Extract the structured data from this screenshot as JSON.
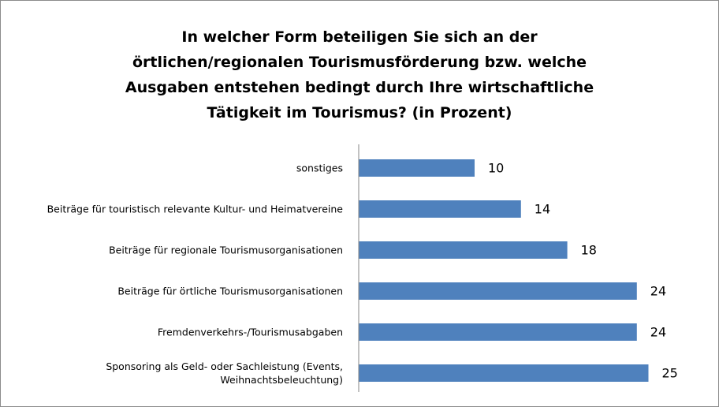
{
  "chart_data": {
    "type": "bar",
    "orientation": "horizontal",
    "title": "In welcher Form beteiligen Sie sich an der örtlichen/regionalen Tourismusförderung bzw. welche Ausgaben entstehen bedingt durch Ihre wirtschaftliche Tätigkeit im Tourismus?  (in Prozent)",
    "categories": [
      "sonstiges",
      "Beiträge für touristisch relevante Kultur- und Heimatvereine",
      "Beiträge für regionale Tourismusorganisationen",
      "Beiträge für örtliche Tourismusorganisationen",
      "Fremdenverkehrs-/Tourismusabgaben",
      "Sponsoring als Geld- oder Sachleistung (Events, Weihnachtsbeleuchtung)"
    ],
    "values": [
      10,
      14,
      18,
      24,
      24,
      25
    ],
    "color": "#4f81bd",
    "xlim": [
      0,
      30
    ]
  }
}
